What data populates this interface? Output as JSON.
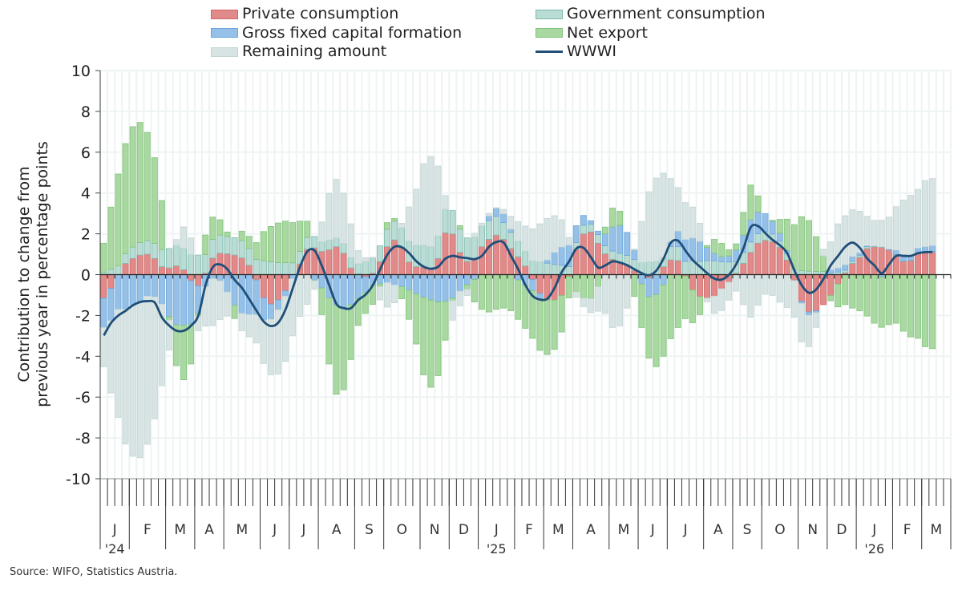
{
  "legend": {
    "private": "Private consumption",
    "government": "Government consumption",
    "gfcf": "Gross fixed capital formation",
    "netexport": "Net export",
    "remaining": "Remaining amount",
    "wwwi": "WWWI"
  },
  "colors": {
    "private": {
      "fill": "#e08a8a",
      "stroke": "#d26666"
    },
    "government": {
      "fill": "#b9dcd5",
      "stroke": "#7db9ac"
    },
    "gfcf": {
      "fill": "#95c1e8",
      "stroke": "#6ea7dc"
    },
    "netexport": {
      "fill": "#a9d8a1",
      "stroke": "#80c47a"
    },
    "remaining": {
      "fill": "#d7e4e3",
      "stroke": "#c2d4d3"
    },
    "wwwi": "#1f4e79"
  },
  "source": "Source: WIFO, Statistics Austria.",
  "chart_data": {
    "type": "bar",
    "stacked": true,
    "title": "",
    "ylabel": [
      "Contribution to change from",
      "previous year in percentage points"
    ],
    "xlabel": "",
    "ylim": [
      -10,
      10
    ],
    "yticks": [
      "10",
      "8",
      "6",
      "4",
      "2",
      "0",
      "-2",
      "-4",
      "-6",
      "-8",
      "-10"
    ],
    "grid": true,
    "legend_position": "top",
    "frequency": "weekly",
    "total_slots": 117,
    "months": [
      {
        "label": "J",
        "year": "'24",
        "weeks": 4
      },
      {
        "label": "F",
        "weeks": 5
      },
      {
        "label": "M",
        "weeks": 4
      },
      {
        "label": "A",
        "weeks": 4
      },
      {
        "label": "M",
        "weeks": 5
      },
      {
        "label": "J",
        "weeks": 4
      },
      {
        "label": "J",
        "weeks": 4
      },
      {
        "label": "A",
        "weeks": 5
      },
      {
        "label": "S",
        "weeks": 4
      },
      {
        "label": "O",
        "weeks": 5
      },
      {
        "label": "N",
        "weeks": 4
      },
      {
        "label": "D",
        "weeks": 4
      },
      {
        "label": "J",
        "year": "'25",
        "weeks": 5
      },
      {
        "label": "F",
        "weeks": 4
      },
      {
        "label": "M",
        "weeks": 4
      },
      {
        "label": "A",
        "weeks": 5
      },
      {
        "label": "M",
        "weeks": 4
      },
      {
        "label": "J",
        "weeks": 4
      },
      {
        "label": "J",
        "weeks": 5
      },
      {
        "label": "A",
        "weeks": 4
      },
      {
        "label": "S",
        "weeks": 4
      },
      {
        "label": "O",
        "weeks": 5
      },
      {
        "label": "N",
        "weeks": 4
      },
      {
        "label": "D",
        "weeks": 4
      },
      {
        "label": "J",
        "year": "'26",
        "weeks": 5
      },
      {
        "label": "F",
        "weeks": 4
      },
      {
        "label": "M",
        "weeks": 4
      }
    ],
    "series": [
      {
        "key": "private",
        "name": "Private consumption",
        "values": [
          -1.15,
          -0.68,
          0,
          0.55,
          0.79,
          0.96,
          1.0,
          0.79,
          0.39,
          0.33,
          0.43,
          0.24,
          -0.3,
          -0.55,
          0.08,
          0.81,
          1.05,
          1.02,
          0.96,
          0.82,
          0.46,
          -0.26,
          -1.14,
          -1.44,
          -1.24,
          -0.79,
          0,
          0.52,
          1.24,
          1.31,
          1.14,
          1.22,
          1.37,
          1.05,
          0.33,
          0.03,
          -0.1,
          0.07,
          0.63,
          1.37,
          1.7,
          1.34,
          0.62,
          0.39,
          0.39,
          0.26,
          0.79,
          2.05,
          1.99,
          1.09,
          0.65,
          0.72,
          1.37,
          1.73,
          1.94,
          1.73,
          1.28,
          0.88,
          0.42,
          -0.24,
          -0.92,
          -1.24,
          -1.24,
          -1.02,
          -0.09,
          1.24,
          2.0,
          2.09,
          1.54,
          1.02,
          0.75,
          0.59,
          0.46,
          0.2,
          0,
          -0.16,
          0,
          0.39,
          0.72,
          0.69,
          -0.07,
          -0.75,
          -1.07,
          -1.15,
          -1.05,
          -0.69,
          -0.37,
          0.07,
          0.55,
          1.09,
          1.54,
          1.68,
          1.61,
          1.34,
          0.72,
          -0.29,
          -1.31,
          -1.83,
          -1.77,
          -1.47,
          -1.02,
          -0.46,
          0.09,
          0.55,
          0.85,
          1.28,
          1.37,
          1.34,
          1.2,
          0.96,
          0.65,
          0.69,
          1.02,
          1.11,
          1.11
        ]
      },
      {
        "key": "government",
        "name": "Government consumption",
        "values": [
          0.1,
          0.26,
          0.43,
          0.47,
          0.56,
          0.61,
          0.67,
          0.74,
          0.84,
          0.95,
          1.0,
          1.05,
          0.98,
          0.96,
          0.9,
          0.92,
          0.89,
          0.85,
          0.85,
          0.85,
          0.82,
          0.75,
          0.69,
          0.63,
          0.59,
          0.59,
          0.58,
          0.62,
          0.59,
          0.56,
          0.47,
          0.48,
          0.42,
          0.48,
          0.5,
          0.5,
          0.63,
          0.74,
          0.78,
          0.85,
          0.92,
          0.96,
          1.02,
          1.05,
          1.05,
          1.11,
          1.11,
          1.15,
          1.15,
          1.14,
          1.15,
          1.11,
          1.02,
          0.92,
          0.92,
          0.82,
          0.79,
          0.76,
          0.73,
          0.68,
          0.63,
          0.56,
          0.5,
          0.46,
          0.39,
          0.33,
          0.42,
          0.39,
          0.42,
          0.39,
          0.41,
          0.46,
          0.48,
          0.55,
          0.59,
          0.62,
          0.65,
          0.46,
          0.65,
          0.68,
          0.65,
          0.69,
          0.65,
          0.68,
          0.68,
          0.63,
          0.62,
          0.55,
          0.54,
          0.51,
          0.46,
          0.42,
          0.38,
          0.3,
          0.33,
          0.26,
          0.2,
          0.17,
          0.16,
          0.16,
          0.07,
          0.13,
          0.13,
          0.1,
          0.1,
          0.09,
          0.03,
          0.02,
          0.02,
          0.02,
          0.02,
          0.02,
          0.02,
          0.02,
          0.02
        ]
      },
      {
        "key": "gfcf",
        "name": "Gross fixed capital formation",
        "values": [
          -1.44,
          -1.57,
          -1.7,
          -1.7,
          -1.5,
          -1.34,
          -1.05,
          -1.09,
          -1.44,
          -2.07,
          -2.46,
          -2.49,
          -2.12,
          -1.35,
          -0.59,
          -0.2,
          -0.3,
          -0.85,
          -1.5,
          -1.9,
          -1.96,
          -1.7,
          -1.09,
          -0.75,
          -0.48,
          -0.26,
          -0.2,
          0,
          0,
          -0.26,
          -0.65,
          -1.14,
          -1.5,
          -1.64,
          -1.47,
          -1.18,
          -0.78,
          -0.52,
          -0.46,
          -0.39,
          -0.5,
          -0.59,
          -0.76,
          -0.94,
          -1.11,
          -1.24,
          -1.34,
          -1.31,
          -1.15,
          -0.81,
          -0.5,
          -0.24,
          0,
          0.22,
          0.39,
          0.43,
          0.16,
          -0.26,
          -0.52,
          -0.55,
          -0.26,
          0.16,
          0.59,
          0.89,
          1.05,
          0.83,
          0.48,
          0.16,
          0.17,
          0.59,
          1.18,
          1.37,
          1.13,
          0.46,
          -0.46,
          -0.93,
          -0.98,
          -0.5,
          0.24,
          0.76,
          1.07,
          1.1,
          0.98,
          0.65,
          0.37,
          0.25,
          0.3,
          0.59,
          0.85,
          1.09,
          1.07,
          0.89,
          0.63,
          0.39,
          0.13,
          0,
          -0.1,
          -0.16,
          -0.09,
          0,
          0.17,
          0.2,
          0.26,
          0.24,
          0.13,
          0.05,
          0,
          -0.13,
          0.03,
          0.22,
          0.2,
          0.2,
          0.26,
          0.24,
          0.29
        ]
      },
      {
        "key": "netexport",
        "name": "Net export",
        "values": [
          1.44,
          3.05,
          4.5,
          5.4,
          5.9,
          5.89,
          5.3,
          4.2,
          2.4,
          -0.16,
          -2.0,
          -2.66,
          -1.96,
          -0.13,
          0.96,
          1.09,
          0.75,
          0.22,
          -0.65,
          0.46,
          0.6,
          0.82,
          1.42,
          1.73,
          1.94,
          2.03,
          1.97,
          1.48,
          0.79,
          -0.03,
          -1.31,
          -3.24,
          -4.36,
          -4.0,
          -2.69,
          -1.31,
          -1.02,
          -0.94,
          -0.13,
          0.33,
          0.13,
          -0.59,
          -1.43,
          -2.46,
          -3.8,
          -4.28,
          -3.61,
          -1.9,
          -0.12,
          0.17,
          -0.22,
          -1.1,
          -1.7,
          -1.83,
          -1.7,
          -1.64,
          -1.77,
          -1.93,
          -2.11,
          -2.33,
          -2.53,
          -2.67,
          -2.42,
          -1.79,
          -1.05,
          -0.85,
          -1.15,
          -1.18,
          -0.59,
          0.33,
          0.92,
          0.69,
          0,
          -1.07,
          -2.13,
          -3.0,
          -3.53,
          -3.5,
          -3.14,
          -2.59,
          -2.09,
          -1.61,
          -0.89,
          0.1,
          0.68,
          0.65,
          0.3,
          0.3,
          1.11,
          1.7,
          0.79,
          0,
          0.04,
          0.68,
          1.54,
          2.19,
          2.64,
          2.48,
          1.7,
          0.76,
          -0.26,
          -1.12,
          -1.47,
          -1.64,
          -1.77,
          -2.03,
          -2.38,
          -2.45,
          -2.45,
          -2.38,
          -2.77,
          -3.05,
          -3.12,
          -3.53,
          -3.63
        ]
      },
      {
        "key": "remaining",
        "name": "Remaining amount",
        "values": [
          -1.92,
          -3.55,
          -5.3,
          -6.6,
          -7.4,
          -7.63,
          -7.26,
          -5.98,
          -4.0,
          -1.47,
          0.29,
          1.05,
          0.82,
          -0.72,
          -1.93,
          -2.3,
          -1.9,
          -1.18,
          0,
          -0.85,
          -1.09,
          -1.39,
          -2.13,
          -2.72,
          -3.15,
          -3.2,
          -2.8,
          -2.05,
          -1.46,
          -0.43,
          0.97,
          2.28,
          2.88,
          2.46,
          1.66,
          0.65,
          0.2,
          0.04,
          -0.65,
          -1.2,
          -0.88,
          0.22,
          1.68,
          2.75,
          4.0,
          4.42,
          3.42,
          0.68,
          -0.96,
          -0.72,
          -0.3,
          0.2,
          0.13,
          0.13,
          0.03,
          0.22,
          0.63,
          0.96,
          1.23,
          1.57,
          1.86,
          2.03,
          1.8,
          1.34,
          0.39,
          -0.26,
          -0.42,
          -0.68,
          -1.2,
          -1.9,
          -2.59,
          -2.51,
          -1.64,
          0.04,
          2.02,
          3.44,
          4.08,
          4.12,
          3.1,
          2.14,
          1.81,
          1.52,
          0.89,
          -0.18,
          -0.85,
          -1.07,
          -0.88,
          -0.81,
          -1.47,
          -2.09,
          -1.5,
          -0.96,
          -1.02,
          -1.35,
          -1.61,
          -1.8,
          -1.88,
          -1.54,
          -0.73,
          0.33,
          1.37,
          2.16,
          2.41,
          2.29,
          2.03,
          1.44,
          1.26,
          1.31,
          1.57,
          2.13,
          2.79,
          2.98,
          2.88,
          3.24,
          3.29
        ]
      },
      {
        "key": "wwwi",
        "name": "WWWI",
        "type": "line",
        "values": [
          -2.98,
          -2.36,
          -2.0,
          -1.77,
          -1.5,
          -1.34,
          -1.3,
          -1.37,
          -2.1,
          -2.5,
          -2.75,
          -2.75,
          -2.5,
          -2.0,
          -0.5,
          0.37,
          0.5,
          0.26,
          -0.26,
          -0.65,
          -1.2,
          -1.77,
          -2.3,
          -2.52,
          -2.35,
          -1.7,
          -0.65,
          0.4,
          1.14,
          1.18,
          0.42,
          -0.52,
          -1.44,
          -1.64,
          -1.64,
          -1.24,
          -0.98,
          -0.52,
          0.26,
          0.98,
          1.37,
          1.34,
          1.05,
          0.65,
          0.39,
          0.29,
          0.39,
          0.79,
          0.92,
          0.85,
          0.81,
          0.76,
          0.92,
          1.37,
          1.6,
          1.57,
          0.92,
          0.26,
          -0.52,
          -1.05,
          -1.22,
          -1.18,
          -0.65,
          0.13,
          0.65,
          1.28,
          1.31,
          0.85,
          0.35,
          0.46,
          0.65,
          0.59,
          0.46,
          0.26,
          0.07,
          -0.03,
          0.2,
          0.79,
          1.57,
          1.66,
          1.18,
          0.72,
          0.39,
          0.07,
          -0.2,
          -0.24,
          0,
          0.52,
          1.31,
          2.33,
          2.38,
          2.03,
          1.7,
          1.44,
          1.05,
          0.2,
          -0.52,
          -0.89,
          -0.72,
          -0.2,
          0.46,
          0.92,
          1.37,
          1.57,
          1.31,
          0.79,
          0.45,
          0.07,
          0.5,
          0.92,
          0.92,
          0.92,
          1.05,
          1.1,
          1.11
        ]
      }
    ]
  }
}
